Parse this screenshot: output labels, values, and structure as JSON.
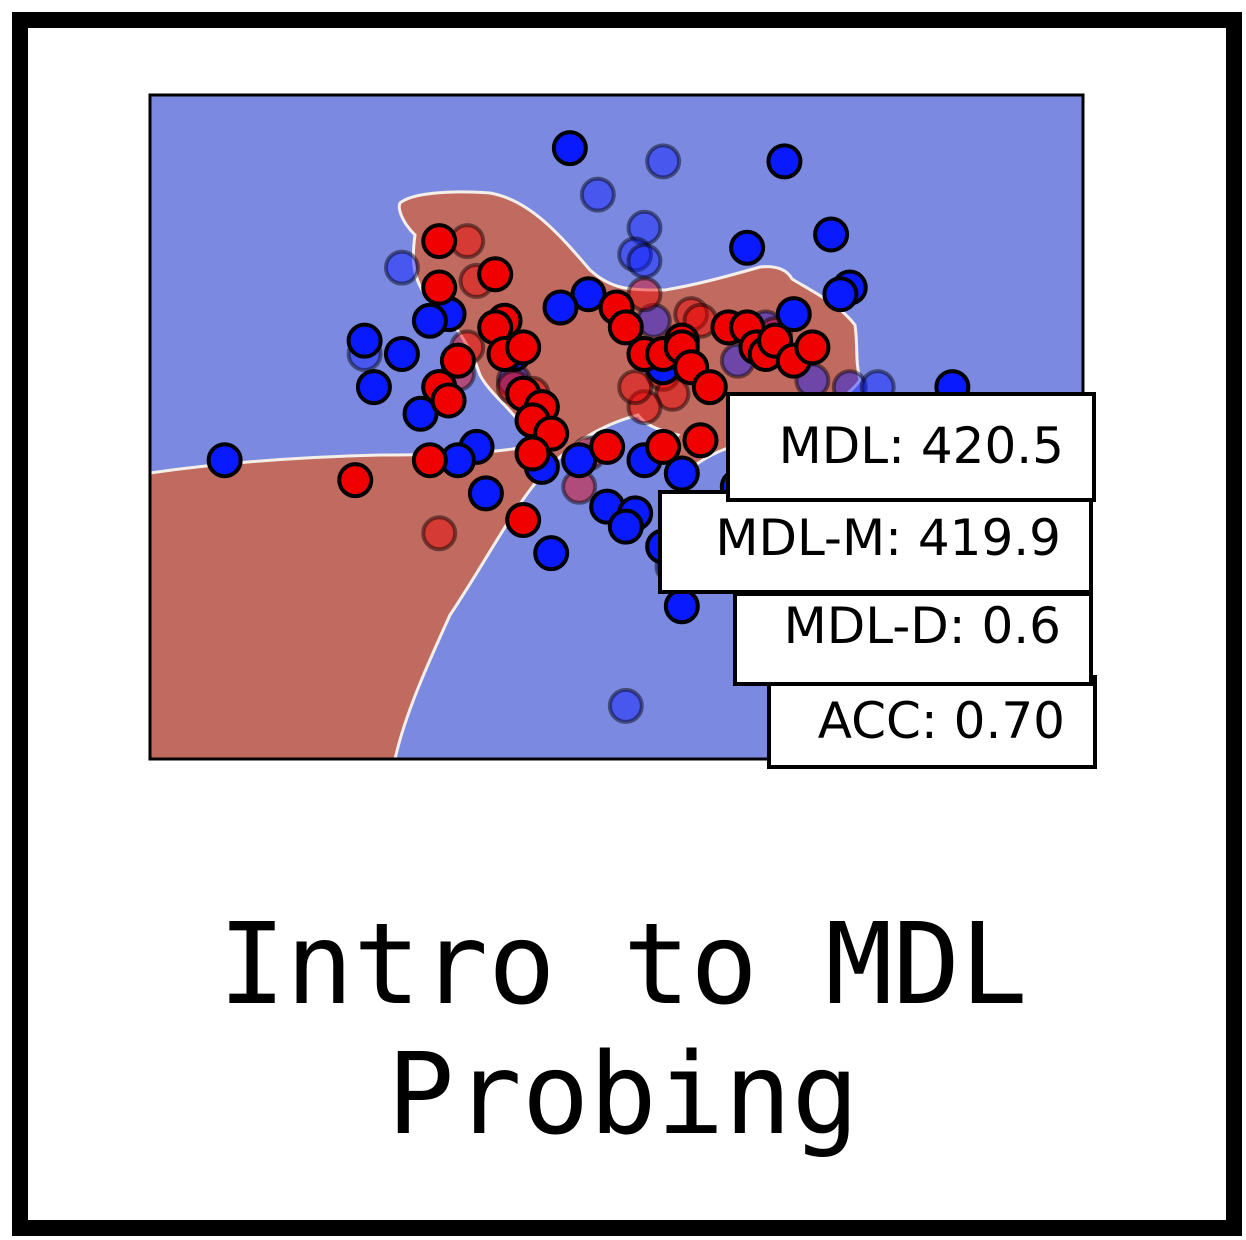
{
  "caption": {
    "line1": "Intro to MDL",
    "line2": "Probing"
  },
  "colors": {
    "blue_region": "#7b8ae0",
    "red_region": "#c06a60",
    "blue_point": "#0a1aff",
    "red_point": "#f00000"
  },
  "metrics": {
    "mdl": "MDL: 420.5",
    "mdl_m": "MDL-M: 419.9",
    "mdl_d": "MDL-D: 0.6",
    "acc": "ACC: 0.70"
  },
  "chart_data": {
    "type": "scatter",
    "title": "",
    "xlabel": "",
    "ylabel": "",
    "xlim": [
      0,
      100
    ],
    "ylim": [
      0,
      100
    ],
    "grid": false,
    "series": [
      {
        "class": "blue",
        "points_train": [
          [
            45,
            92
          ],
          [
            68,
            90
          ],
          [
            64,
            77
          ],
          [
            73,
            79
          ],
          [
            75,
            71
          ],
          [
            74,
            70
          ],
          [
            47,
            70
          ],
          [
            44,
            68
          ],
          [
            23,
            63
          ],
          [
            32,
            67
          ],
          [
            30,
            66
          ],
          [
            27,
            61
          ],
          [
            24,
            56
          ],
          [
            31,
            56
          ],
          [
            29,
            52
          ],
          [
            39,
            61
          ],
          [
            55,
            59
          ],
          [
            53,
            45
          ],
          [
            42,
            44
          ],
          [
            35,
            47
          ],
          [
            8,
            45
          ],
          [
            33,
            45
          ],
          [
            46,
            45
          ],
          [
            49,
            38
          ],
          [
            43,
            31
          ],
          [
            57,
            43
          ],
          [
            55,
            32
          ],
          [
            52,
            37
          ],
          [
            63,
            41
          ],
          [
            57,
            23
          ],
          [
            69,
            67
          ],
          [
            86,
            56
          ],
          [
            51,
            35
          ],
          [
            36,
            40
          ]
        ],
        "points_test": [
          [
            55,
            90
          ],
          [
            48,
            85
          ],
          [
            53,
            80
          ],
          [
            52,
            76
          ],
          [
            53,
            75
          ],
          [
            27,
            74
          ],
          [
            54,
            66
          ],
          [
            62,
            65
          ],
          [
            66,
            65
          ],
          [
            63,
            60
          ],
          [
            71,
            57
          ],
          [
            75,
            56
          ],
          [
            78,
            56
          ],
          [
            69,
            52
          ],
          [
            39,
            57
          ],
          [
            56,
            29
          ],
          [
            51,
            8
          ],
          [
            23,
            61
          ]
        ]
      },
      {
        "class": "red",
        "points_train": [
          [
            31,
            78
          ],
          [
            37,
            73
          ],
          [
            38,
            66
          ],
          [
            31,
            71
          ],
          [
            37,
            65
          ],
          [
            38,
            61
          ],
          [
            40,
            62
          ],
          [
            33,
            60
          ],
          [
            31,
            56
          ],
          [
            32,
            54
          ],
          [
            40,
            55
          ],
          [
            42,
            53
          ],
          [
            41,
            51
          ],
          [
            43,
            49
          ],
          [
            41,
            46
          ],
          [
            49,
            47
          ],
          [
            30,
            45
          ],
          [
            22,
            42
          ],
          [
            40,
            36
          ],
          [
            50,
            68
          ],
          [
            53,
            61
          ],
          [
            55,
            61
          ],
          [
            57,
            63
          ],
          [
            51,
            65
          ],
          [
            57,
            62
          ],
          [
            58,
            59
          ],
          [
            62,
            65
          ],
          [
            64,
            65
          ],
          [
            65,
            62
          ],
          [
            66,
            61
          ],
          [
            67,
            63
          ],
          [
            69,
            60
          ],
          [
            71,
            62
          ],
          [
            60,
            56
          ],
          [
            55,
            47
          ],
          [
            59,
            48
          ]
        ],
        "points_test": [
          [
            34,
            78
          ],
          [
            35,
            72
          ],
          [
            34,
            62
          ],
          [
            33,
            58
          ],
          [
            39,
            56
          ],
          [
            41,
            55
          ],
          [
            55,
            58
          ],
          [
            56,
            55
          ],
          [
            53,
            53
          ],
          [
            52,
            56
          ],
          [
            47,
            46
          ],
          [
            46,
            41
          ],
          [
            31,
            34
          ],
          [
            53,
            70
          ],
          [
            58,
            67
          ],
          [
            59,
            66
          ],
          [
            67,
            64
          ]
        ]
      }
    ]
  }
}
